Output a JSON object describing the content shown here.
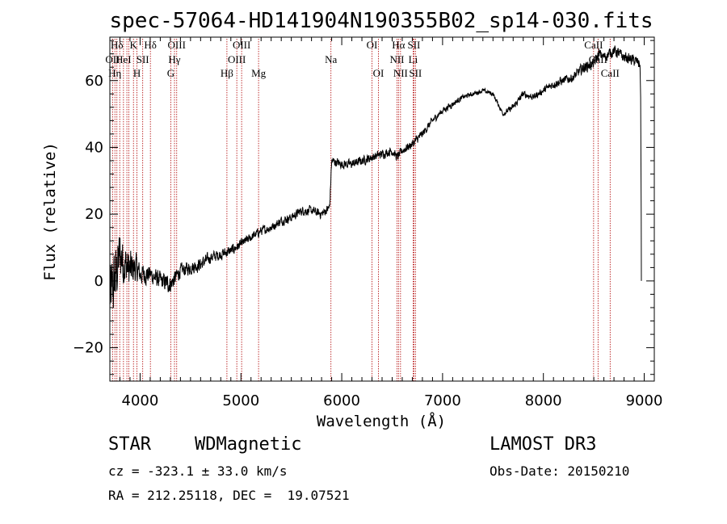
{
  "chart_data": {
    "type": "line",
    "title": "spec-57064-HD141904N190355B02_sp14-030.fits",
    "xlabel": "Wavelength (Å)",
    "ylabel": "Flux (relative)",
    "xlim": [
      3700,
      9100
    ],
    "ylim": [
      -30,
      73
    ],
    "xticks": [
      4000,
      5000,
      6000,
      7000,
      8000,
      9000
    ],
    "yticks": [
      -20,
      0,
      20,
      40,
      60
    ],
    "spectrum_anchors": {
      "x": [
        3700,
        3750,
        3800,
        3850,
        3900,
        3950,
        4000,
        4100,
        4200,
        4300,
        4400,
        4500,
        4600,
        4700,
        4800,
        4900,
        5000,
        5100,
        5200,
        5300,
        5400,
        5500,
        5600,
        5700,
        5800,
        5880,
        5900,
        6000,
        6100,
        6200,
        6300,
        6400,
        6500,
        6550,
        6600,
        6700,
        6800,
        6900,
        7000,
        7100,
        7200,
        7300,
        7400,
        7500,
        7600,
        7700,
        7800,
        7900,
        8000,
        8100,
        8200,
        8300,
        8400,
        8500,
        8550,
        8600,
        8700,
        8800,
        8900,
        8960,
        9000
      ],
      "y": [
        -5,
        0,
        8,
        5,
        3,
        4,
        2,
        2,
        0,
        -1,
        3,
        4,
        5,
        7,
        8,
        9,
        11,
        13,
        15,
        16,
        18,
        19,
        21,
        21,
        20,
        22,
        36,
        35,
        35,
        36,
        37,
        38,
        39,
        37,
        39,
        41,
        44,
        48,
        51,
        53,
        55,
        56,
        57,
        56,
        50,
        52,
        56,
        55,
        57,
        59,
        60,
        61,
        64,
        65,
        68,
        67,
        69,
        67,
        66,
        65,
        0
      ],
      "noise_amplitude": [
        16,
        14,
        12,
        10,
        9,
        7,
        5,
        4,
        4,
        4,
        3,
        3,
        3,
        2.5,
        2.5,
        2.5,
        2,
        2,
        2,
        2,
        2,
        2,
        2,
        2,
        2,
        2,
        2,
        2,
        2,
        2,
        2,
        2,
        2,
        2,
        2,
        2,
        2,
        1.5,
        1.5,
        1.5,
        1,
        1,
        1,
        1,
        1,
        1.5,
        1.5,
        1.5,
        1.5,
        2,
        2,
        2,
        2.5,
        2.5,
        2.5,
        2.5,
        2.5,
        2.5,
        2.5,
        2.5,
        0
      ]
    },
    "spectral_lines": [
      {
        "wave": 3727,
        "top": "OII",
        "bottom": "OII",
        "row": 1
      },
      {
        "wave": 3750,
        "top": "",
        "bottom": "Hη",
        "row": 2
      },
      {
        "wave": 3770,
        "top": "Hδ",
        "bottom": "",
        "row": 0
      },
      {
        "wave": 3798,
        "top": "",
        "bottom": "",
        "row": 0
      },
      {
        "wave": 3835,
        "top": "HeI",
        "bottom": "",
        "row": 1
      },
      {
        "wave": 3869,
        "top": "",
        "bottom": "",
        "row": 0
      },
      {
        "wave": 3889,
        "top": "",
        "bottom": "",
        "row": 0
      },
      {
        "wave": 3934,
        "top": "K",
        "bottom": "",
        "row": 0
      },
      {
        "wave": 3969,
        "top": "H",
        "bottom": "",
        "row": 2
      },
      {
        "wave": 4026,
        "top": "SII",
        "bottom": "",
        "row": 1
      },
      {
        "wave": 4102,
        "top": "Hδ",
        "bottom": "",
        "row": 0
      },
      {
        "wave": 4304,
        "top": "G",
        "bottom": "",
        "row": 2
      },
      {
        "wave": 4341,
        "top": "Hγ",
        "bottom": "",
        "row": 1
      },
      {
        "wave": 4363,
        "top": "OIII",
        "bottom": "",
        "row": 0
      },
      {
        "wave": 4861,
        "top": "Hβ",
        "bottom": "",
        "row": 2
      },
      {
        "wave": 4959,
        "top": "OIII",
        "bottom": "",
        "row": 1
      },
      {
        "wave": 5007,
        "top": "OIII",
        "bottom": "",
        "row": 0
      },
      {
        "wave": 5175,
        "top": "Mg",
        "bottom": "",
        "row": 2
      },
      {
        "wave": 5893,
        "top": "Na",
        "bottom": "",
        "row": 1
      },
      {
        "wave": 6300,
        "top": "OI",
        "bottom": "",
        "row": 0
      },
      {
        "wave": 6364,
        "top": "OI",
        "bottom": "",
        "row": 2
      },
      {
        "wave": 6548,
        "top": "NII",
        "bottom": "",
        "row": 1
      },
      {
        "wave": 6563,
        "top": "Hα",
        "bottom": "",
        "row": 0
      },
      {
        "wave": 6583,
        "top": "NII",
        "bottom": "",
        "row": 2
      },
      {
        "wave": 6708,
        "top": "Li",
        "bottom": "",
        "row": 1
      },
      {
        "wave": 6716,
        "top": "SII",
        "bottom": "",
        "row": 0
      },
      {
        "wave": 6731,
        "top": "SII",
        "bottom": "",
        "row": 2
      },
      {
        "wave": 8498,
        "top": "CaII",
        "bottom": "",
        "row": 0
      },
      {
        "wave": 8542,
        "top": "CaII",
        "bottom": "",
        "row": 1
      },
      {
        "wave": 8662,
        "top": "CaII",
        "bottom": "",
        "row": 2
      }
    ],
    "line_label_texts": [
      "Hδ",
      "K",
      "Hδ",
      "OIII",
      "OIII",
      "OII",
      "HeI",
      "SII",
      "Hγ",
      "OIII",
      "Na",
      "OI",
      "Hα",
      "SII",
      "CaII",
      "NII",
      "Li",
      "CaII",
      "OII",
      "Hη",
      "H",
      "G",
      "Hβ",
      "Mg",
      "OI",
      "NII",
      "SII",
      "CaII"
    ],
    "colors": {
      "spectrum": "#000000",
      "line_marker": "#b00000",
      "axis": "#000000"
    }
  },
  "info": {
    "object_class": "STAR",
    "subclass": "WDMagnetic",
    "survey": "LAMOST DR3",
    "cz": "cz = -323.1 ± 33.0 km/s",
    "obs_date": "Obs-Date: 20150210",
    "coords": "RA = 212.25118, DEC =  19.07521"
  }
}
